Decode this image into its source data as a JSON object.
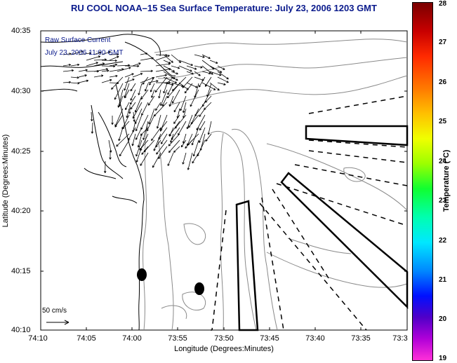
{
  "title": "RU COOL  NOAA–15  Sea Surface Temperature:  July 23, 2006 1203 GMT",
  "overlay": {
    "line1": "Raw Surface Current",
    "line2": "July 23, 2006 11:00 GMT"
  },
  "axes": {
    "xlabel": "Longitude (Degrees:Minutes)",
    "ylabel": "Latitude (Degrees:Minutes)",
    "xticks": [
      "74:10",
      "74:05",
      "74:00",
      "73:55",
      "73:50",
      "73:45",
      "73:40",
      "73:35",
      "73:3"
    ],
    "yticks": [
      "40:35",
      "40:30",
      "40:25",
      "40:20",
      "40:15",
      "40:10"
    ]
  },
  "colorbar": {
    "label": "Temperature (°C)",
    "ticks": [
      "28",
      "27",
      "26",
      "25",
      "24",
      "23",
      "22",
      "21",
      "20",
      "19"
    ],
    "min": 19,
    "max": 28
  },
  "scale": {
    "label": "50 cm/s"
  }
}
